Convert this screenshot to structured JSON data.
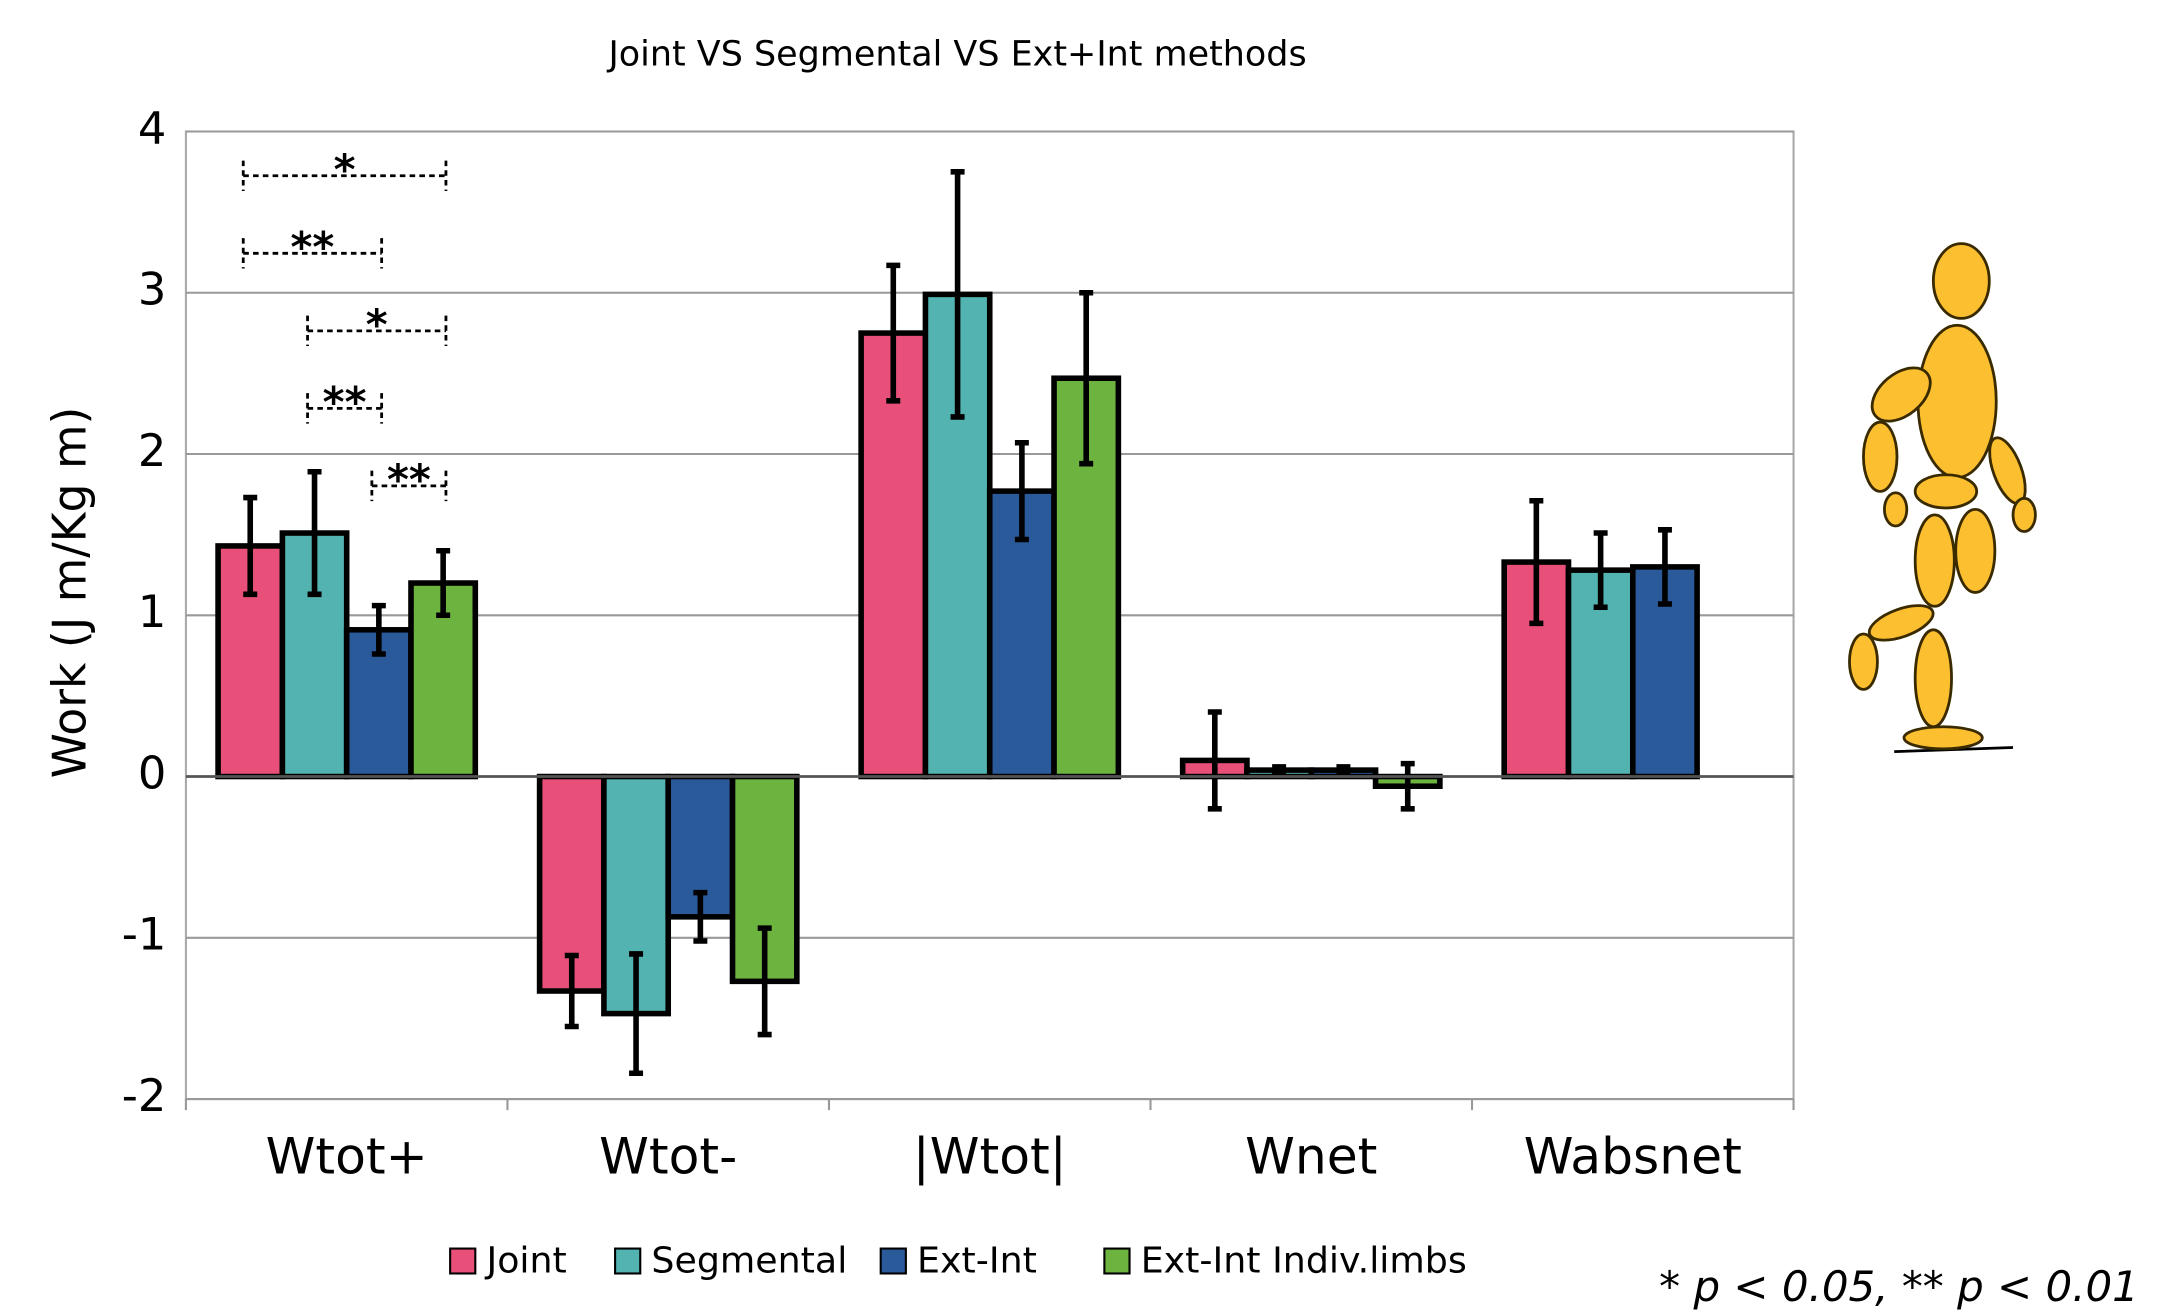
{
  "chart_data": {
    "type": "bar",
    "title": "Joint VS Segmental VS Ext+Int methods",
    "y_label": "Work (J m/Kg m)",
    "categories": [
      "Wtot+",
      "Wtot-",
      "|Wtot|",
      "Wnet",
      "Wabsnet"
    ],
    "series": [
      {
        "name": "Joint",
        "color": "#e8507a",
        "values": [
          1.43,
          -1.33,
          2.75,
          0.1,
          1.33
        ],
        "errors": [
          0.3,
          0.22,
          0.42,
          0.3,
          0.38
        ]
      },
      {
        "name": "Segmental",
        "color": "#52b3b0",
        "values": [
          1.51,
          -1.47,
          2.99,
          0.04,
          1.28
        ],
        "errors": [
          0.38,
          0.37,
          0.76,
          0.02,
          0.23
        ]
      },
      {
        "name": "Ext-Int",
        "color": "#2a5a9a",
        "values": [
          0.91,
          -0.87,
          1.77,
          0.04,
          1.3
        ],
        "errors": [
          0.15,
          0.15,
          0.3,
          0.02,
          0.23
        ]
      },
      {
        "name": "Ext-Int Indiv.limbs",
        "color": "#6db33f",
        "values": [
          1.2,
          -1.27,
          2.47,
          -0.06,
          null
        ],
        "errors": [
          0.2,
          0.33,
          0.53,
          0.14,
          null
        ]
      }
    ],
    "ylim": [
      -2,
      4
    ],
    "yticks": [
      -2,
      -1,
      0,
      1,
      2,
      3,
      4
    ],
    "grid": true,
    "legend": "bottom",
    "significance": [
      {
        "text": "*",
        "from": 0,
        "to": 3
      },
      {
        "text": "**",
        "from": 0,
        "to": 2
      },
      {
        "text": "*",
        "from": 1,
        "to": 3
      },
      {
        "text": "**",
        "from": 1,
        "to": 2
      },
      {
        "text": "**",
        "from": 2,
        "to": 3
      }
    ],
    "footnote": "* p < 0.05, ** p < 0.01"
  }
}
